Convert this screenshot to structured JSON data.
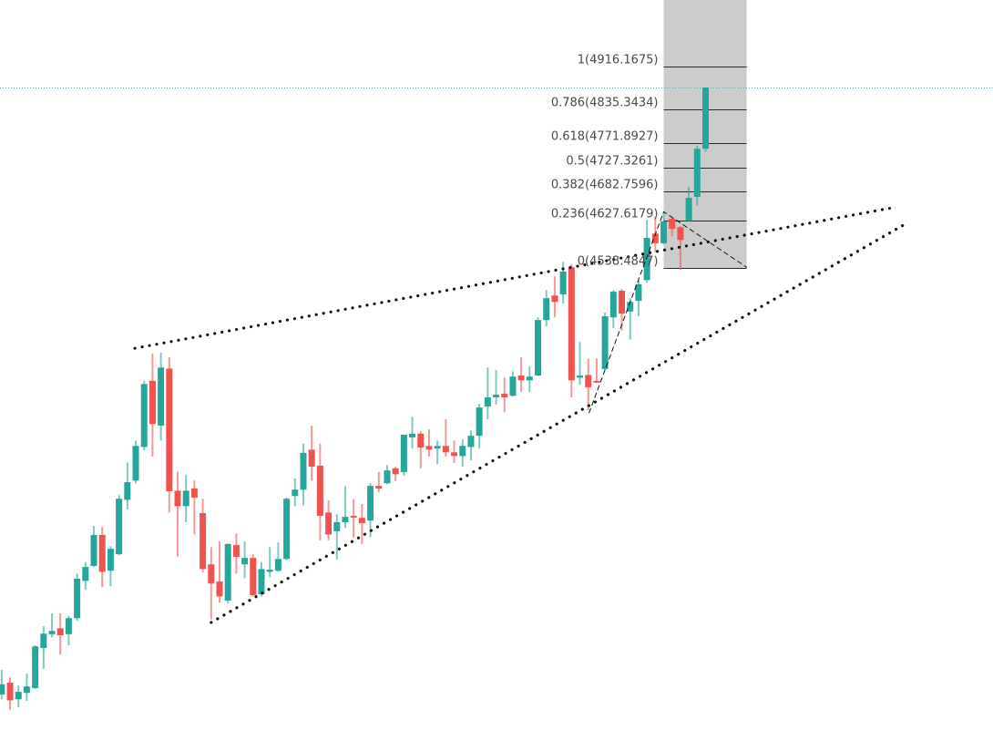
{
  "chart_data": {
    "type": "candlestick",
    "title": "",
    "xlabel": "",
    "ylabel": "",
    "xlim": [
      -0.2,
      118.3
    ],
    "ylim": [
      3633,
      5041
    ],
    "grid": false,
    "colors": {
      "up": "#26a69a",
      "down": "#ef5350",
      "fib_zone": "#cccccc",
      "fib_line": "#2b2b2b",
      "price_line": "#4fb3c0",
      "drawing": "#111111"
    },
    "last_price": 4877,
    "candles_ohlc": [
      [
        3739,
        3785,
        3730,
        3758
      ],
      [
        3761,
        3771,
        3710,
        3728
      ],
      [
        3730,
        3756,
        3715,
        3744
      ],
      [
        3742,
        3778,
        3727,
        3754
      ],
      [
        3751,
        3831,
        3749,
        3829
      ],
      [
        3826,
        3867,
        3787,
        3853
      ],
      [
        3852,
        3891,
        3846,
        3858
      ],
      [
        3863,
        3891,
        3814,
        3850
      ],
      [
        3852,
        3886,
        3831,
        3882
      ],
      [
        3882,
        3966,
        3877,
        3956
      ],
      [
        3952,
        3987,
        3935,
        3978
      ],
      [
        3980,
        4055,
        3978,
        4038
      ],
      [
        4038,
        4053,
        3940,
        3969
      ],
      [
        3971,
        4017,
        3942,
        4012
      ],
      [
        4002,
        4113,
        4000,
        4106
      ],
      [
        4104,
        4174,
        4086,
        4137
      ],
      [
        4140,
        4215,
        4135,
        4205
      ],
      [
        4203,
        4327,
        4197,
        4321
      ],
      [
        4327,
        4378,
        4185,
        4246
      ],
      [
        4243,
        4380,
        4215,
        4352
      ],
      [
        4350,
        4371,
        4080,
        4120
      ],
      [
        4121,
        4157,
        3998,
        4092
      ],
      [
        4092,
        4151,
        4062,
        4121
      ],
      [
        4125,
        4140,
        4039,
        4108
      ],
      [
        4079,
        4106,
        3968,
        3974
      ],
      [
        3983,
        4015,
        3880,
        3947
      ],
      [
        3951,
        4026,
        3911,
        3923
      ],
      [
        3915,
        4022,
        3910,
        4021
      ],
      [
        4019,
        4041,
        3966,
        3997
      ],
      [
        3983,
        4026,
        3957,
        3995
      ],
      [
        3995,
        4002,
        3923,
        3925
      ],
      [
        3927,
        3987,
        3923,
        3974
      ],
      [
        3969,
        4015,
        3959,
        3973
      ],
      [
        3971,
        4024,
        3969,
        3993
      ],
      [
        3993,
        4108,
        3991,
        4106
      ],
      [
        4111,
        4144,
        4092,
        4123
      ],
      [
        4123,
        4209,
        4094,
        4192
      ],
      [
        4198,
        4243,
        4140,
        4166
      ],
      [
        4168,
        4209,
        4028,
        4074
      ],
      [
        4080,
        4103,
        4028,
        4039
      ],
      [
        4045,
        4077,
        3992,
        4062
      ],
      [
        4062,
        4130,
        4051,
        4072
      ],
      [
        4074,
        4106,
        4033,
        4072
      ],
      [
        4070,
        4096,
        4021,
        4060
      ],
      [
        4065,
        4135,
        4034,
        4130
      ],
      [
        4130,
        4156,
        4118,
        4125
      ],
      [
        4135,
        4169,
        4133,
        4159
      ],
      [
        4163,
        4166,
        4139,
        4152
      ],
      [
        4156,
        4226,
        4149,
        4226
      ],
      [
        4221,
        4260,
        4200,
        4228
      ],
      [
        4228,
        4233,
        4163,
        4202
      ],
      [
        4205,
        4236,
        4185,
        4198
      ],
      [
        4200,
        4215,
        4171,
        4205
      ],
      [
        4205,
        4255,
        4185,
        4193
      ],
      [
        4193,
        4215,
        4173,
        4186
      ],
      [
        4186,
        4217,
        4166,
        4205
      ],
      [
        4203,
        4234,
        4178,
        4224
      ],
      [
        4224,
        4284,
        4200,
        4277
      ],
      [
        4279,
        4352,
        4255,
        4296
      ],
      [
        4296,
        4347,
        4282,
        4301
      ],
      [
        4303,
        4333,
        4268,
        4296
      ],
      [
        4299,
        4345,
        4297,
        4335
      ],
      [
        4337,
        4371,
        4306,
        4328
      ],
      [
        4328,
        4354,
        4306,
        4335
      ],
      [
        4337,
        4446,
        4336,
        4441
      ],
      [
        4441,
        4497,
        4429,
        4482
      ],
      [
        4487,
        4523,
        4446,
        4475
      ],
      [
        4489,
        4550,
        4472,
        4532
      ],
      [
        4540,
        4545,
        4296,
        4328
      ],
      [
        4333,
        4400,
        4320,
        4337
      ],
      [
        4338,
        4369,
        4272,
        4315
      ],
      [
        4327,
        4369,
        4323,
        4325
      ],
      [
        4349,
        4455,
        4347,
        4448
      ],
      [
        4446,
        4497,
        4426,
        4494
      ],
      [
        4496,
        4499,
        4421,
        4453
      ],
      [
        4457,
        4482,
        4404,
        4475
      ],
      [
        4477,
        4515,
        4448,
        4508
      ],
      [
        4516,
        4629,
        4511,
        4595
      ],
      [
        4603,
        4634,
        4568,
        4585
      ],
      [
        4585,
        4641,
        4583,
        4626
      ],
      [
        4631,
        4633,
        4598,
        4612
      ],
      [
        4615,
        4617,
        4535,
        4591
      ],
      [
        4627,
        4691,
        4625,
        4670
      ],
      [
        4672,
        4768,
        4656,
        4762
      ],
      [
        4762,
        4877,
        4756,
        4877
      ]
    ],
    "fibonacci": {
      "start_index": 79.0,
      "end_index": 88.9,
      "levels": [
        {
          "ratio": 1,
          "price": 4916.1675,
          "label": "1(4916.1675)"
        },
        {
          "ratio": 0.786,
          "price": 4835.3434,
          "label": "0.786(4835.3434)"
        },
        {
          "ratio": 0.618,
          "price": 4771.8927,
          "label": "0.618(4771.8927)"
        },
        {
          "ratio": 0.5,
          "price": 4727.3261,
          "label": "0.5(4727.3261)"
        },
        {
          "ratio": 0.382,
          "price": 4682.7596,
          "label": "0.382(4682.7596)"
        },
        {
          "ratio": 0.236,
          "price": 4627.6179,
          "label": "0.236(4627.6179)"
        },
        {
          "ratio": 0,
          "price": 4538.4847,
          "label": "0(4538.4847)"
        }
      ]
    },
    "drawings": {
      "upper_trendline": [
        [
          15.9,
          4388
        ],
        [
          106.8,
          4653
        ]
      ],
      "lower_trendline": [
        [
          25.0,
          3874
        ],
        [
          107.6,
          4619
        ]
      ],
      "dashed_swing": [
        [
          70.1,
          4267
        ],
        [
          79.0,
          4644
        ],
        [
          88.9,
          4540
        ]
      ]
    }
  }
}
